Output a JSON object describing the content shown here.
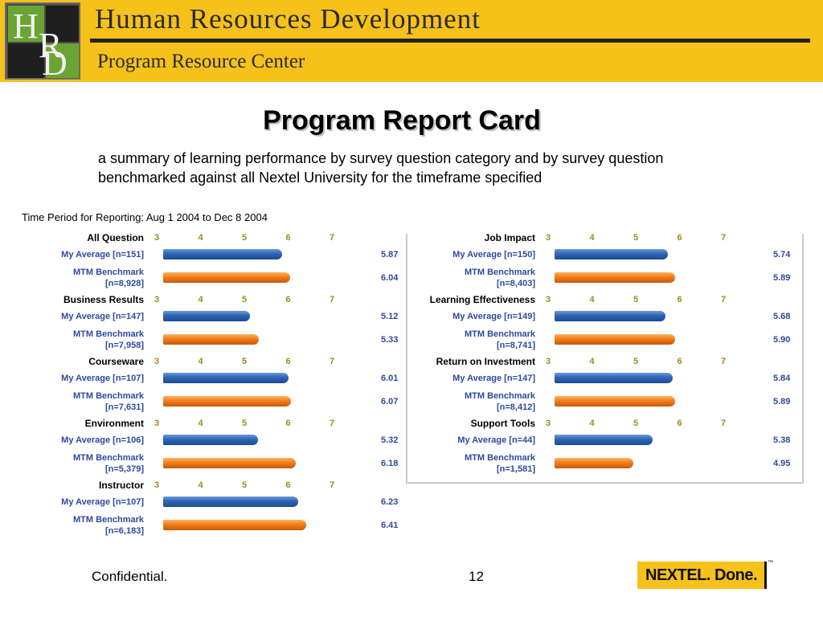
{
  "header": {
    "logo_letters": [
      "H",
      "R",
      "D"
    ],
    "title": "Human Resources Development",
    "subtitle": "Program Resource Center"
  },
  "page": {
    "title": "Program Report Card",
    "subtitle": "a summary of learning performance by survey question category and by survey question benchmarked against all Nextel University for the timeframe specified"
  },
  "footer": {
    "confidential": "Confidential.",
    "page_number": "12",
    "brand": "NEXTEL. Done.",
    "brand_tm": "™"
  },
  "colors": {
    "banner": "#f5c11a",
    "my_average": "#2f65b5",
    "benchmark": "#f37d1b",
    "label_text": "#2c4a9e",
    "tick_text": "#a08a1a"
  },
  "chart_data": {
    "type": "bar",
    "orientation": "horizontal",
    "title": "Time Period for Reporting: Aug 1 2004 to Dec 8 2004",
    "axis_ticks": [
      "3",
      "4",
      "5",
      "6",
      "7"
    ],
    "xlim": [
      3,
      7
    ],
    "panels": [
      {
        "categories": [
          {
            "name": "All Question",
            "rows": [
              {
                "label": "My Average [n=151]",
                "value": 5.87,
                "display": "5.87",
                "series": "my_average"
              },
              {
                "label": "MTM Benchmark [n=8,928]",
                "label_line1": "MTM Benchmark",
                "label_line2": "[n=8,928]",
                "value": 6.04,
                "display": "6.04",
                "series": "benchmark"
              }
            ]
          },
          {
            "name": "Business Results",
            "rows": [
              {
                "label": "My Average [n=147]",
                "value": 5.12,
                "display": "5.12",
                "series": "my_average"
              },
              {
                "label": "MTM Benchmark [n=7,958]",
                "label_line1": "MTM Benchmark",
                "label_line2": "[n=7,958]",
                "value": 5.33,
                "display": "5.33",
                "series": "benchmark"
              }
            ]
          },
          {
            "name": "Courseware",
            "rows": [
              {
                "label": "My Average [n=107]",
                "value": 6.01,
                "display": "6.01",
                "series": "my_average"
              },
              {
                "label": "MTM Benchmark [n=7,631]",
                "label_line1": "MTM Benchmark",
                "label_line2": "[n=7,631]",
                "value": 6.07,
                "display": "6.07",
                "series": "benchmark"
              }
            ]
          },
          {
            "name": "Environment",
            "rows": [
              {
                "label": "My Average [n=106]",
                "value": 5.32,
                "display": "5.32",
                "series": "my_average"
              },
              {
                "label": "MTM Benchmark [n=5,379]",
                "label_line1": "MTM Benchmark",
                "label_line2": "[n=5,379]",
                "value": 6.18,
                "display": "6.18",
                "series": "benchmark"
              }
            ]
          },
          {
            "name": "Instructor",
            "rows": [
              {
                "label": "My Average [n=107]",
                "value": 6.23,
                "display": "6.23",
                "series": "my_average"
              },
              {
                "label": "MTM Benchmark [n=6,183]",
                "label_line1": "MTM Benchmark",
                "label_line2": "[n=6,183]",
                "value": 6.41,
                "display": "6.41",
                "series": "benchmark"
              }
            ]
          }
        ]
      },
      {
        "categories": [
          {
            "name": "Job Impact",
            "rows": [
              {
                "label": "My Average [n=150]",
                "value": 5.74,
                "display": "5.74",
                "series": "my_average"
              },
              {
                "label": "MTM Benchmark [n=8,403]",
                "label_line1": "MTM Benchmark",
                "label_line2": "[n=8,403]",
                "value": 5.89,
                "display": "5.89",
                "series": "benchmark"
              }
            ]
          },
          {
            "name": "Learning Effectiveness",
            "rows": [
              {
                "label": "My Average [n=149]",
                "value": 5.68,
                "display": "5.68",
                "series": "my_average"
              },
              {
                "label": "MTM Benchmark [n=8,741]",
                "label_line1": "MTM Benchmark",
                "label_line2": "[n=8,741]",
                "value": 5.9,
                "display": "5.90",
                "series": "benchmark"
              }
            ]
          },
          {
            "name": "Return on Investment",
            "rows": [
              {
                "label": "My Average [n=147]",
                "value": 5.84,
                "display": "5.84",
                "series": "my_average"
              },
              {
                "label": "MTM Benchmark [n=8,412]",
                "label_line1": "MTM Benchmark",
                "label_line2": "[n=8,412]",
                "value": 5.89,
                "display": "5.89",
                "series": "benchmark"
              }
            ]
          },
          {
            "name": "Support Tools",
            "rows": [
              {
                "label": "My Average [n=44]",
                "value": 5.38,
                "display": "5.38",
                "series": "my_average"
              },
              {
                "label": "MTM Benchmark [n=1,581]",
                "label_line1": "MTM Benchmark",
                "label_line2": "[n=1,581]",
                "value": 4.95,
                "display": "4.95",
                "series": "benchmark"
              }
            ]
          }
        ]
      }
    ]
  }
}
